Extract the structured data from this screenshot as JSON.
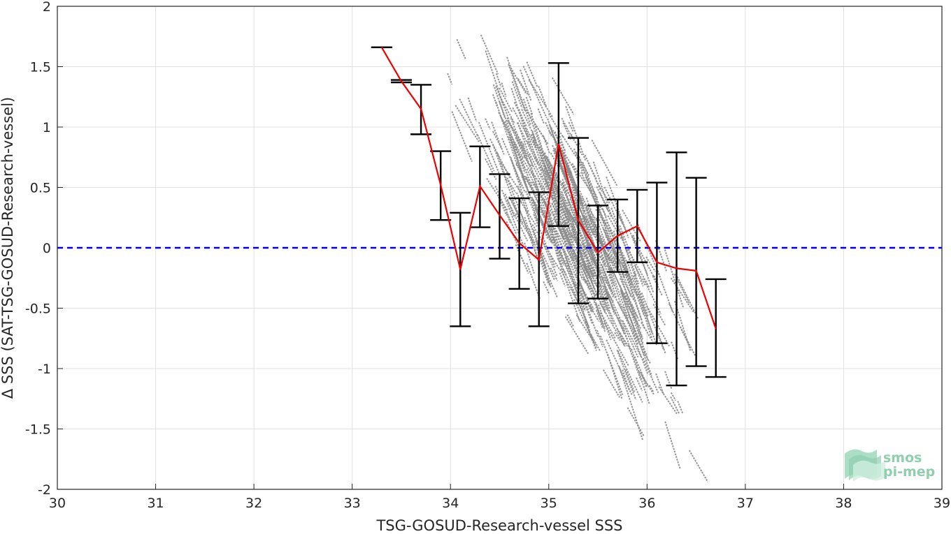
{
  "chart_data": {
    "type": "scatter",
    "title": "",
    "xlabel": "TSG-GOSUD-Research-vessel SSS",
    "ylabel": "Δ SSS (SAT-TSG-GOSUD-Research-vessel)",
    "xlim": [
      30,
      39
    ],
    "ylim": [
      -2,
      2
    ],
    "xticks": [
      "30",
      "31",
      "32",
      "33",
      "34",
      "35",
      "36",
      "37",
      "38",
      "39"
    ],
    "yticks": [
      "2",
      "1.5",
      "1",
      "0.5",
      "0",
      "-0.5",
      "-1",
      "-1.5",
      "-2"
    ],
    "grid": true,
    "reference_line": {
      "y": 0,
      "style": "dashed",
      "color": "#0000e6"
    },
    "colors": {
      "scatter": "#8a8a8a",
      "mean_line": "#ee0000",
      "error_bars": "#000000"
    },
    "binned_stats": {
      "x": [
        33.3,
        33.5,
        33.7,
        33.9,
        34.1,
        34.3,
        34.5,
        34.7,
        34.9,
        35.1,
        35.3,
        35.5,
        35.7,
        35.9,
        36.1,
        36.3,
        36.5,
        36.7
      ],
      "mean": [
        1.66,
        1.38,
        1.15,
        0.52,
        -0.18,
        0.51,
        0.27,
        0.04,
        -0.1,
        0.86,
        0.23,
        -0.04,
        0.1,
        0.18,
        -0.12,
        -0.17,
        -0.19,
        -0.67
      ],
      "low": [
        1.66,
        1.37,
        0.94,
        0.23,
        -0.65,
        0.17,
        -0.09,
        -0.34,
        -0.65,
        0.18,
        -0.46,
        -0.42,
        -0.2,
        -0.12,
        -0.79,
        -1.14,
        -0.98,
        -1.07
      ],
      "high": [
        1.66,
        1.39,
        1.35,
        0.8,
        0.29,
        0.84,
        0.61,
        0.41,
        0.46,
        1.53,
        0.91,
        0.35,
        0.4,
        0.48,
        0.54,
        0.79,
        0.58,
        -0.26
      ]
    },
    "scatter_trend": {
      "x_range": [
        33.9,
        36.8
      ],
      "slope": -1.0,
      "center_x": 35.3,
      "center_y": 0.1
    }
  },
  "logo": {
    "line1": "smos",
    "line2": "pi-mep"
  }
}
